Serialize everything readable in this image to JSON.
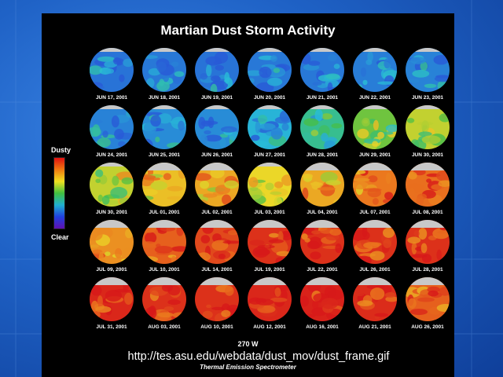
{
  "title": "Martian Dust Storm Activity",
  "legend": {
    "top_label": "Dusty",
    "bottom_label": "Clear",
    "scale_colors": [
      "#e01010",
      "#f07a10",
      "#f0e020",
      "#40c040",
      "#20b0d0",
      "#2040e0",
      "#6010b0"
    ]
  },
  "frames": [
    {
      "date": "JUN 17, 2001",
      "dust": 0.05
    },
    {
      "date": "JUN 18, 2001",
      "dust": 0.06
    },
    {
      "date": "JUN 19, 2001",
      "dust": 0.05
    },
    {
      "date": "JUN 20, 2001",
      "dust": 0.06
    },
    {
      "date": "JUN 21, 2001",
      "dust": 0.06
    },
    {
      "date": "JUN 22, 2001",
      "dust": 0.07
    },
    {
      "date": "JUN 23, 2001",
      "dust": 0.08
    },
    {
      "date": "JUN 24, 2001",
      "dust": 0.08
    },
    {
      "date": "JUN 25, 2001",
      "dust": 0.1
    },
    {
      "date": "JUN 26, 2001",
      "dust": 0.1
    },
    {
      "date": "JUN 27, 2001",
      "dust": 0.18
    },
    {
      "date": "JUN 28, 2001",
      "dust": 0.3
    },
    {
      "date": "JUN 29, 2001",
      "dust": 0.45
    },
    {
      "date": "JUN 30, 2001",
      "dust": 0.55
    },
    {
      "date": "JUN 30, 2001",
      "dust": 0.55
    },
    {
      "date": "JUL 01, 2001",
      "dust": 0.65
    },
    {
      "date": "JUL 02, 2001",
      "dust": 0.7
    },
    {
      "date": "JUL 03, 2001",
      "dust": 0.6
    },
    {
      "date": "JUL 04, 2001",
      "dust": 0.7
    },
    {
      "date": "JUL 07, 2001",
      "dust": 0.8
    },
    {
      "date": "JUL 08, 2001",
      "dust": 0.82
    },
    {
      "date": "JUL 09, 2001",
      "dust": 0.75
    },
    {
      "date": "JUL 10, 2001",
      "dust": 0.85
    },
    {
      "date": "JUL 14, 2001",
      "dust": 0.9
    },
    {
      "date": "JUL 19, 2001",
      "dust": 0.95
    },
    {
      "date": "JUL 22, 2001",
      "dust": 0.95
    },
    {
      "date": "JUL 26, 2001",
      "dust": 0.95
    },
    {
      "date": "JUL 28, 2001",
      "dust": 0.95
    },
    {
      "date": "JUL 31, 2001",
      "dust": 0.97
    },
    {
      "date": "AUG 03, 2001",
      "dust": 0.95
    },
    {
      "date": "AUG 10, 2001",
      "dust": 0.95
    },
    {
      "date": "AUG 12, 2001",
      "dust": 0.97
    },
    {
      "date": "AUG 16, 2001",
      "dust": 0.98
    },
    {
      "date": "AUG 21, 2001",
      "dust": 0.96
    },
    {
      "date": "AUG 26, 2001",
      "dust": 0.85
    }
  ],
  "meridian": "270 W",
  "url": "http://tes.asu.edu/webdata/dust_mov/dust_frame.gif",
  "instrument": "Thermal Emission Spectrometer"
}
